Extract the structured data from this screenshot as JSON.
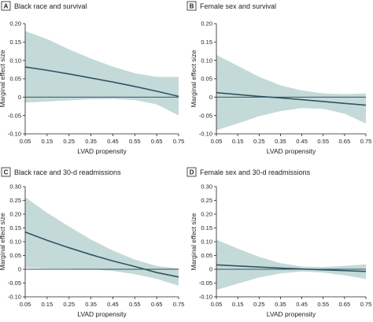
{
  "colors": {
    "ci_band": "#c4dad9",
    "estimate_line": "#2f5563",
    "axis": "#222222"
  },
  "chart_data": [
    {
      "type": "line",
      "panel": "A",
      "title": "Black race and survival",
      "xlabel": "LVAD propensity",
      "ylabel": "Marginal effect size",
      "xlim": [
        0.05,
        0.75
      ],
      "ylim": [
        -0.1,
        0.2
      ],
      "x_ticks": [
        "0.05",
        "0.15",
        "0.25",
        "0.35",
        "0.45",
        "0.55",
        "0.65",
        "0.75"
      ],
      "y_ticks": [
        "0.20",
        "0.15",
        "0.10",
        "0.05",
        "0",
        "-0.05",
        "-0.10"
      ],
      "grid": false,
      "reference_line": 0,
      "x": [
        0.05,
        0.15,
        0.25,
        0.35,
        0.45,
        0.55,
        0.65,
        0.75
      ],
      "estimate": [
        0.082,
        0.073,
        0.063,
        0.052,
        0.041,
        0.029,
        0.016,
        0.002
      ],
      "ci_upper": [
        0.18,
        0.158,
        0.13,
        0.105,
        0.083,
        0.065,
        0.055,
        0.055
      ],
      "ci_lower": [
        -0.015,
        -0.012,
        -0.009,
        -0.006,
        -0.005,
        -0.008,
        -0.02,
        -0.05
      ]
    },
    {
      "type": "line",
      "panel": "B",
      "title": "Female sex and survival",
      "xlabel": "LVAD propensity",
      "ylabel": "Marginal effect size",
      "xlim": [
        0.05,
        0.75
      ],
      "ylim": [
        -0.1,
        0.2
      ],
      "x_ticks": [
        "0.05",
        "0.15",
        "0.25",
        "0.35",
        "0.45",
        "0.55",
        "0.65",
        "0.75"
      ],
      "y_ticks": [
        "0.20",
        "0.15",
        "0.10",
        "0.05",
        "0",
        "-0.05",
        "-0.10"
      ],
      "grid": false,
      "reference_line": 0,
      "x": [
        0.05,
        0.15,
        0.25,
        0.35,
        0.45,
        0.55,
        0.65,
        0.75
      ],
      "estimate": [
        0.012,
        0.007,
        0.002,
        -0.002,
        -0.007,
        -0.012,
        -0.017,
        -0.022
      ],
      "ci_upper": [
        0.115,
        0.085,
        0.055,
        0.032,
        0.018,
        0.01,
        0.008,
        0.01
      ],
      "ci_lower": [
        -0.09,
        -0.072,
        -0.052,
        -0.038,
        -0.03,
        -0.032,
        -0.045,
        -0.072
      ]
    },
    {
      "type": "line",
      "panel": "C",
      "title": "Black race and 30-d readmissions",
      "xlabel": "LVAD propensity",
      "ylabel": "Marginal effect size",
      "xlim": [
        0.05,
        0.75
      ],
      "ylim": [
        -0.1,
        0.3
      ],
      "x_ticks": [
        "0.05",
        "0.15",
        "0.25",
        "0.35",
        "0.45",
        "0.55",
        "0.65",
        "0.75"
      ],
      "y_ticks": [
        "0.30",
        "0.25",
        "0.20",
        "0.15",
        "0.10",
        "0.05",
        "0",
        "-0.05",
        "-0.10"
      ],
      "grid": false,
      "reference_line": 0,
      "x": [
        0.05,
        0.15,
        0.25,
        0.35,
        0.45,
        0.55,
        0.65,
        0.75
      ],
      "estimate": [
        0.135,
        0.105,
        0.078,
        0.053,
        0.03,
        0.01,
        -0.012,
        -0.028
      ],
      "ci_upper": [
        0.262,
        0.205,
        0.155,
        0.108,
        0.068,
        0.035,
        0.012,
        0.003
      ],
      "ci_lower": [
        0.005,
        0.003,
        0.002,
        0.0,
        -0.006,
        -0.018,
        -0.035,
        -0.06
      ]
    },
    {
      "type": "line",
      "panel": "D",
      "title": "Female sex and 30-d readmissions",
      "xlabel": "LVAD propensity",
      "ylabel": "Marginal effect size",
      "xlim": [
        0.05,
        0.75
      ],
      "ylim": [
        -0.1,
        0.3
      ],
      "x_ticks": [
        "0.05",
        "0.15",
        "0.25",
        "0.35",
        "0.45",
        "0.55",
        "0.65",
        "0.75"
      ],
      "y_ticks": [
        "0.30",
        "0.25",
        "0.20",
        "0.15",
        "0.10",
        "0.05",
        "0",
        "-0.05",
        "-0.10"
      ],
      "grid": false,
      "reference_line": 0,
      "x": [
        0.05,
        0.15,
        0.25,
        0.35,
        0.45,
        0.55,
        0.65,
        0.75
      ],
      "estimate": [
        0.016,
        0.012,
        0.008,
        0.004,
        0.001,
        -0.002,
        -0.005,
        -0.008
      ],
      "ci_upper": [
        0.108,
        0.075,
        0.045,
        0.022,
        0.01,
        0.008,
        0.012,
        0.018
      ],
      "ci_lower": [
        -0.075,
        -0.052,
        -0.03,
        -0.015,
        -0.008,
        -0.012,
        -0.022,
        -0.035
      ]
    }
  ]
}
